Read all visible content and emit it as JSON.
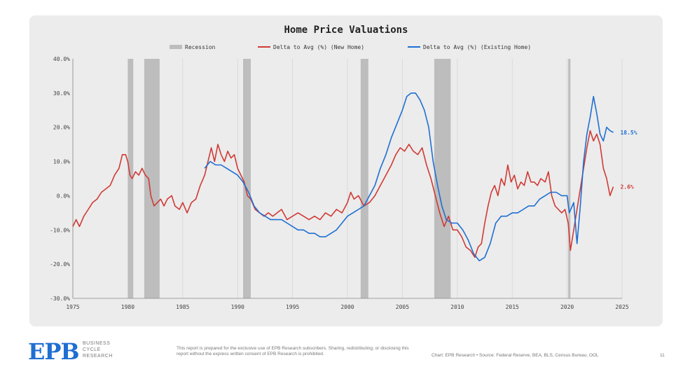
{
  "chart_data": {
    "type": "line",
    "title": "Home Price Valuations",
    "xlim": [
      1975,
      2025
    ],
    "ylim": [
      -30,
      40
    ],
    "x_ticks": [
      1975,
      1980,
      1985,
      1990,
      1995,
      2000,
      2005,
      2010,
      2015,
      2020,
      2025
    ],
    "y_ticks": [
      -30,
      -20,
      -10,
      0,
      10,
      20,
      30,
      40
    ],
    "y_tick_labels": [
      "-30.0%",
      "-20.0%",
      "-10.0%",
      "0.0%",
      "10.0%",
      "20.0%",
      "30.0%",
      "40.0%"
    ],
    "grid": "vertical",
    "legend_position": "top-center",
    "legend": {
      "recession": "Recession",
      "new_home": "Delta to Avg (%) (New Home)",
      "existing_home": "Delta to Avg (%) (Existing Home)"
    },
    "recessions": [
      [
        1980.0,
        1980.5
      ],
      [
        1981.5,
        1982.9
      ],
      [
        1990.5,
        1991.2
      ],
      [
        2001.2,
        2001.9
      ],
      [
        2007.9,
        2009.4
      ],
      [
        2020.1,
        2020.3
      ]
    ],
    "series": [
      {
        "name": "Delta to Avg (%) (New Home)",
        "color": "#d03a35",
        "end_label": "2.6%",
        "points": [
          [
            1975.0,
            -9
          ],
          [
            1975.3,
            -7
          ],
          [
            1975.6,
            -9
          ],
          [
            1976.0,
            -6
          ],
          [
            1976.4,
            -4
          ],
          [
            1976.8,
            -2
          ],
          [
            1977.2,
            -1
          ],
          [
            1977.6,
            1
          ],
          [
            1978.0,
            2
          ],
          [
            1978.4,
            3
          ],
          [
            1978.8,
            6
          ],
          [
            1979.2,
            8
          ],
          [
            1979.5,
            12
          ],
          [
            1979.8,
            12
          ],
          [
            1980.0,
            10
          ],
          [
            1980.2,
            6
          ],
          [
            1980.4,
            5
          ],
          [
            1980.7,
            7
          ],
          [
            1981.0,
            6
          ],
          [
            1981.3,
            8
          ],
          [
            1981.6,
            6
          ],
          [
            1981.9,
            5
          ],
          [
            1982.1,
            0
          ],
          [
            1982.4,
            -3
          ],
          [
            1982.7,
            -2
          ],
          [
            1983.0,
            -1
          ],
          [
            1983.3,
            -3
          ],
          [
            1983.6,
            -1
          ],
          [
            1984.0,
            0
          ],
          [
            1984.3,
            -3
          ],
          [
            1984.7,
            -4
          ],
          [
            1985.0,
            -2
          ],
          [
            1985.4,
            -5
          ],
          [
            1985.8,
            -2
          ],
          [
            1986.2,
            -1
          ],
          [
            1986.6,
            3
          ],
          [
            1987.0,
            6
          ],
          [
            1987.3,
            10
          ],
          [
            1987.6,
            14
          ],
          [
            1987.9,
            10
          ],
          [
            1988.2,
            15
          ],
          [
            1988.5,
            12
          ],
          [
            1988.8,
            10
          ],
          [
            1989.1,
            13
          ],
          [
            1989.4,
            11
          ],
          [
            1989.7,
            12
          ],
          [
            1990.0,
            8
          ],
          [
            1990.3,
            6
          ],
          [
            1990.6,
            4
          ],
          [
            1990.9,
            0
          ],
          [
            1991.2,
            -1
          ],
          [
            1991.6,
            -4
          ],
          [
            1992.0,
            -5
          ],
          [
            1992.4,
            -6
          ],
          [
            1992.8,
            -5
          ],
          [
            1993.2,
            -6
          ],
          [
            1993.6,
            -5
          ],
          [
            1994.0,
            -4
          ],
          [
            1994.5,
            -7
          ],
          [
            1995.0,
            -6
          ],
          [
            1995.5,
            -5
          ],
          [
            1996.0,
            -6
          ],
          [
            1996.5,
            -7
          ],
          [
            1997.0,
            -6
          ],
          [
            1997.5,
            -7
          ],
          [
            1998.0,
            -5
          ],
          [
            1998.5,
            -6
          ],
          [
            1999.0,
            -4
          ],
          [
            1999.5,
            -5
          ],
          [
            2000.0,
            -2
          ],
          [
            2000.3,
            1
          ],
          [
            2000.6,
            -1
          ],
          [
            2001.0,
            0
          ],
          [
            2001.5,
            -3
          ],
          [
            2002.0,
            -2
          ],
          [
            2002.5,
            0
          ],
          [
            2003.0,
            3
          ],
          [
            2003.5,
            6
          ],
          [
            2004.0,
            9
          ],
          [
            2004.4,
            12
          ],
          [
            2004.8,
            14
          ],
          [
            2005.2,
            13
          ],
          [
            2005.6,
            15
          ],
          [
            2006.0,
            13
          ],
          [
            2006.4,
            12
          ],
          [
            2006.8,
            14
          ],
          [
            2007.2,
            9
          ],
          [
            2007.6,
            5
          ],
          [
            2008.0,
            0
          ],
          [
            2008.4,
            -5
          ],
          [
            2008.8,
            -9
          ],
          [
            2009.2,
            -6
          ],
          [
            2009.6,
            -10
          ],
          [
            2010.0,
            -10
          ],
          [
            2010.4,
            -12
          ],
          [
            2010.8,
            -15
          ],
          [
            2011.2,
            -16
          ],
          [
            2011.6,
            -18
          ],
          [
            2011.9,
            -15
          ],
          [
            2012.2,
            -14
          ],
          [
            2012.5,
            -8
          ],
          [
            2012.8,
            -3
          ],
          [
            2013.1,
            1
          ],
          [
            2013.4,
            3
          ],
          [
            2013.7,
            0
          ],
          [
            2014.0,
            5
          ],
          [
            2014.3,
            3
          ],
          [
            2014.6,
            9
          ],
          [
            2014.9,
            4
          ],
          [
            2015.2,
            6
          ],
          [
            2015.5,
            2
          ],
          [
            2015.8,
            4
          ],
          [
            2016.1,
            3
          ],
          [
            2016.4,
            7
          ],
          [
            2016.7,
            4
          ],
          [
            2017.0,
            4
          ],
          [
            2017.3,
            3
          ],
          [
            2017.6,
            5
          ],
          [
            2018.0,
            4
          ],
          [
            2018.3,
            7
          ],
          [
            2018.6,
            0
          ],
          [
            2018.9,
            -3
          ],
          [
            2019.2,
            -4
          ],
          [
            2019.5,
            -5
          ],
          [
            2019.8,
            -4
          ],
          [
            2020.1,
            -8
          ],
          [
            2020.3,
            -16
          ],
          [
            2020.6,
            -10
          ],
          [
            2020.9,
            -4
          ],
          [
            2021.2,
            2
          ],
          [
            2021.5,
            8
          ],
          [
            2021.8,
            14
          ],
          [
            2022.1,
            19
          ],
          [
            2022.4,
            16
          ],
          [
            2022.7,
            18
          ],
          [
            2023.0,
            15
          ],
          [
            2023.3,
            8
          ],
          [
            2023.6,
            5
          ],
          [
            2023.9,
            0
          ],
          [
            2024.2,
            2.6
          ]
        ]
      },
      {
        "name": "Delta to Avg (%) (Existing Home)",
        "color": "#1f6fd1",
        "end_label": "18.5%",
        "points": [
          [
            1987.0,
            8
          ],
          [
            1987.5,
            10
          ],
          [
            1988.0,
            9
          ],
          [
            1988.5,
            9
          ],
          [
            1989.0,
            8
          ],
          [
            1989.5,
            7
          ],
          [
            1990.0,
            6
          ],
          [
            1990.5,
            4
          ],
          [
            1991.0,
            1
          ],
          [
            1991.5,
            -3
          ],
          [
            1992.0,
            -5
          ],
          [
            1992.5,
            -6
          ],
          [
            1993.0,
            -7
          ],
          [
            1993.5,
            -7
          ],
          [
            1994.0,
            -7
          ],
          [
            1994.5,
            -8
          ],
          [
            1995.0,
            -9
          ],
          [
            1995.5,
            -10
          ],
          [
            1996.0,
            -10
          ],
          [
            1996.5,
            -11
          ],
          [
            1997.0,
            -11
          ],
          [
            1997.5,
            -12
          ],
          [
            1998.0,
            -12
          ],
          [
            1998.5,
            -11
          ],
          [
            1999.0,
            -10
          ],
          [
            1999.5,
            -8
          ],
          [
            2000.0,
            -6
          ],
          [
            2000.5,
            -5
          ],
          [
            2001.0,
            -4
          ],
          [
            2001.5,
            -3
          ],
          [
            2002.0,
            0
          ],
          [
            2002.5,
            3
          ],
          [
            2003.0,
            8
          ],
          [
            2003.5,
            12
          ],
          [
            2004.0,
            17
          ],
          [
            2004.5,
            21
          ],
          [
            2005.0,
            25
          ],
          [
            2005.4,
            29
          ],
          [
            2005.8,
            30
          ],
          [
            2006.2,
            30
          ],
          [
            2006.6,
            28
          ],
          [
            2007.0,
            25
          ],
          [
            2007.4,
            20
          ],
          [
            2007.8,
            10
          ],
          [
            2008.2,
            3
          ],
          [
            2008.6,
            -3
          ],
          [
            2009.0,
            -7
          ],
          [
            2009.5,
            -8
          ],
          [
            2010.0,
            -8
          ],
          [
            2010.5,
            -10
          ],
          [
            2011.0,
            -13
          ],
          [
            2011.5,
            -17
          ],
          [
            2012.0,
            -19
          ],
          [
            2012.5,
            -18
          ],
          [
            2013.0,
            -14
          ],
          [
            2013.5,
            -8
          ],
          [
            2014.0,
            -6
          ],
          [
            2014.5,
            -6
          ],
          [
            2015.0,
            -5
          ],
          [
            2015.5,
            -5
          ],
          [
            2016.0,
            -4
          ],
          [
            2016.5,
            -3
          ],
          [
            2017.0,
            -3
          ],
          [
            2017.5,
            -1
          ],
          [
            2018.0,
            0
          ],
          [
            2018.5,
            1
          ],
          [
            2019.0,
            1
          ],
          [
            2019.5,
            0
          ],
          [
            2020.0,
            0
          ],
          [
            2020.2,
            -5
          ],
          [
            2020.6,
            -2
          ],
          [
            2020.9,
            -14
          ],
          [
            2021.2,
            -3
          ],
          [
            2021.5,
            10
          ],
          [
            2021.8,
            18
          ],
          [
            2022.1,
            23
          ],
          [
            2022.4,
            29
          ],
          [
            2022.7,
            24
          ],
          [
            2023.0,
            18
          ],
          [
            2023.3,
            16
          ],
          [
            2023.6,
            20
          ],
          [
            2023.9,
            19
          ],
          [
            2024.2,
            18.5
          ]
        ]
      }
    ]
  },
  "footer": {
    "logo": "EPB",
    "logo_sub": [
      "BUSINESS",
      "CYCLE",
      "RESEARCH"
    ],
    "disclaimer": "This report is prepared for the exclusive use of EPB Research subscribers. Sharing, redistributing, or disclosing this report without the express written consent of EPB Research is prohibited.",
    "source": "Chart: EPB Research  •  Source: Federal Reserve, BEA, BLS, Census Bureau, OOL",
    "page_number": "11"
  }
}
